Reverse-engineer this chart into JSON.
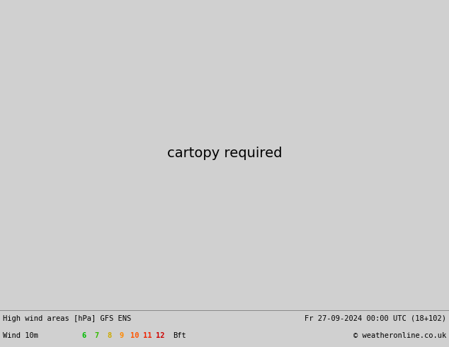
{
  "title_left": "High wind areas [hPa] GFS ENS",
  "title_right": "Fr 27-09-2024 00:00 UTC (18+102)",
  "subtitle_left": "Wind 10m",
  "subtitle_right": "© weatheronline.co.uk",
  "bft_labels": [
    "6",
    "7",
    "8",
    "9",
    "10",
    "11",
    "12"
  ],
  "bft_colors": [
    "#00bb00",
    "#33bb00",
    "#ccaa00",
    "#ff8800",
    "#ff5500",
    "#ee2200",
    "#cc0000"
  ],
  "bft_suffix": "Bft",
  "bg_color": "#d0d0d0",
  "land_color": "#c8ddb0",
  "sea_color": "#cccccc",
  "border_color": "#888888",
  "state_border_color": "#996633",
  "blue": "#2222cc",
  "red": "#cc1111",
  "black": "#111111",
  "wind_shade_light": "#c0f0c0",
  "wind_shade_mid": "#90e890",
  "wind_shade_dark": "#50cc50",
  "wind_shade_darker": "#20aa20",
  "wind_shade_core": "#007700",
  "wind_shade_darkest": "#004400",
  "figwidth": 6.34,
  "figheight": 4.9,
  "dpi": 100
}
